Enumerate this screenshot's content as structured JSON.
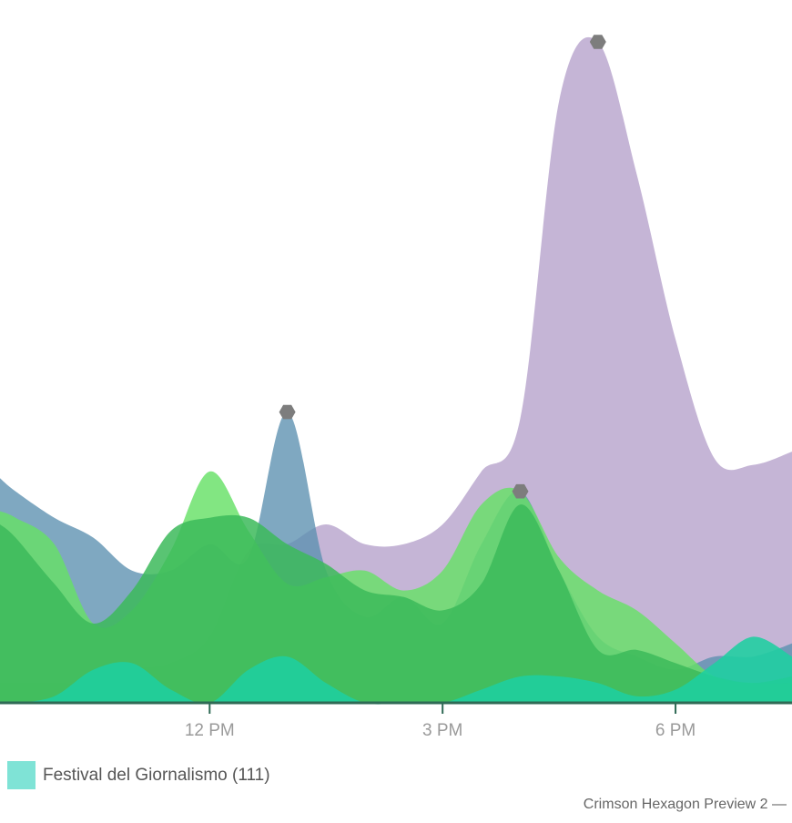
{
  "chart_data": {
    "type": "area",
    "x_unit": "hour of day",
    "x_range": [
      9.3,
      19.5
    ],
    "y_range": [
      0,
      1
    ],
    "x_ticks": [
      {
        "x": 12,
        "label": "12 PM"
      },
      {
        "x": 15,
        "label": "3 PM"
      },
      {
        "x": 18,
        "label": "6 PM"
      }
    ],
    "grid": false,
    "legend_position": "bottom-left",
    "series": [
      {
        "color": "#c5b5d6",
        "opacity": 1,
        "x": [
          9.3,
          9.5,
          10.0,
          10.5,
          11.0,
          11.5,
          12.0,
          12.5,
          13.0,
          13.5,
          14.0,
          14.5,
          15.0,
          15.5,
          16.0,
          16.5,
          17.0,
          17.5,
          18.0,
          18.5,
          19.0,
          19.5
        ],
        "y": [
          0.03,
          0.03,
          0.03,
          0.03,
          0.05,
          0.06,
          0.1,
          0.23,
          0.24,
          0.27,
          0.24,
          0.24,
          0.27,
          0.35,
          0.43,
          0.91,
          1.0,
          0.8,
          0.55,
          0.37,
          0.36,
          0.38
        ]
      },
      {
        "color": "#5b8fb0",
        "opacity": 0.78,
        "x": [
          9.3,
          9.5,
          10.0,
          10.5,
          11.0,
          11.5,
          12.0,
          12.5,
          13.0,
          13.5,
          14.0,
          14.5,
          15.0,
          15.5,
          16.0,
          16.5,
          17.0,
          17.5,
          18.0,
          18.5,
          19.0,
          19.5
        ],
        "y": [
          0.34,
          0.32,
          0.28,
          0.25,
          0.2,
          0.2,
          0.24,
          0.22,
          0.44,
          0.2,
          0.13,
          0.16,
          0.12,
          0.24,
          0.32,
          0.2,
          0.1,
          0.07,
          0.05,
          0.07,
          0.07,
          0.09
        ]
      },
      {
        "color": "#66e066",
        "opacity": 0.82,
        "x": [
          9.3,
          9.5,
          10.0,
          10.5,
          11.0,
          11.5,
          12.0,
          12.5,
          13.0,
          13.5,
          14.0,
          14.5,
          15.0,
          15.5,
          16.0,
          16.5,
          17.0,
          17.5,
          18.0,
          18.5,
          19.0,
          19.5
        ],
        "y": [
          0.29,
          0.28,
          0.24,
          0.12,
          0.14,
          0.23,
          0.35,
          0.26,
          0.18,
          0.19,
          0.2,
          0.17,
          0.2,
          0.3,
          0.32,
          0.22,
          0.17,
          0.14,
          0.09,
          0.04,
          0.03,
          0.03
        ]
      },
      {
        "color": "#3cba5a",
        "opacity": 0.85,
        "x": [
          9.3,
          9.5,
          10.0,
          10.5,
          11.0,
          11.5,
          12.0,
          12.5,
          13.0,
          13.5,
          14.0,
          14.5,
          15.0,
          15.5,
          16.0,
          16.5,
          17.0,
          17.5,
          18.0,
          18.5,
          19.0,
          19.5
        ],
        "y": [
          0.27,
          0.25,
          0.18,
          0.12,
          0.17,
          0.26,
          0.28,
          0.28,
          0.24,
          0.21,
          0.17,
          0.16,
          0.14,
          0.18,
          0.3,
          0.2,
          0.08,
          0.08,
          0.06,
          0.04,
          0.03,
          0.04
        ]
      },
      {
        "name": "Festival del Giornalismo (111)",
        "color": "#1ecfa0",
        "opacity": 0.88,
        "x": [
          9.3,
          9.5,
          10.0,
          10.5,
          11.0,
          11.5,
          12.0,
          12.5,
          13.0,
          13.5,
          14.0,
          14.5,
          15.0,
          15.5,
          16.0,
          16.5,
          17.0,
          17.5,
          18.0,
          18.5,
          19.0,
          19.5
        ],
        "y": [
          0.0,
          0.0,
          0.01,
          0.05,
          0.06,
          0.02,
          0.0,
          0.05,
          0.07,
          0.03,
          0.0,
          0.0,
          0.0,
          0.02,
          0.04,
          0.04,
          0.03,
          0.01,
          0.02,
          0.06,
          0.1,
          0.07
        ]
      }
    ],
    "peak_markers": [
      {
        "x": 13.0,
        "y": 0.44
      },
      {
        "x": 16.0,
        "y": 0.32
      },
      {
        "x": 17.0,
        "y": 1.0
      }
    ]
  },
  "legend": {
    "label": "Festival del Giornalismo (111)",
    "color": "#7fe3d6"
  },
  "credit": "Crimson Hexagon Preview 2 —"
}
